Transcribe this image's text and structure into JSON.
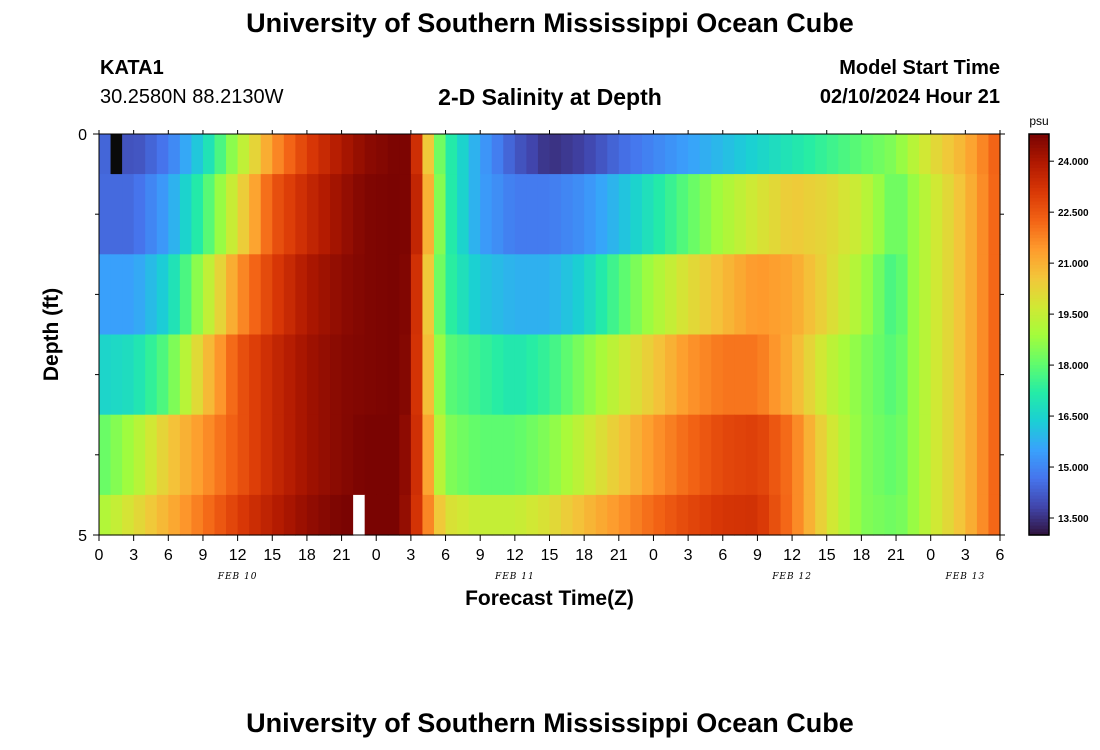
{
  "header": {
    "title": "University of Southern Mississippi Ocean Cube",
    "station": "KATA1",
    "coords": "30.2580N  88.2130W",
    "subtitle": "2-D Salinity at Depth",
    "start_label": "Model Start Time",
    "start_value": "02/10/2024 Hour 21"
  },
  "footer": {
    "title": "University of Southern Mississippi Ocean Cube"
  },
  "colors": {
    "colormap": [
      "#30123b",
      "#4145ab",
      "#4675ed",
      "#39a2fc",
      "#1bcfd4",
      "#24eca6",
      "#61fc6c",
      "#a4fc3b",
      "#d1e834",
      "#f3c63a",
      "#fe9b2d",
      "#f36315",
      "#d93806",
      "#b11901",
      "#7a0402"
    ],
    "missing_dark": "#0a0a0a",
    "missing_light": "#ffffff"
  },
  "chart_data": {
    "type": "heatmap",
    "title": "2-D Salinity at Depth",
    "xlabel": "Forecast Time(Z)",
    "ylabel": "Depth (ft)",
    "x_unit": "hours since 02/10/2024 00Z",
    "x_range": [
      0,
      78
    ],
    "x_tick_step_hours": 3,
    "x_tick_labels": [
      "0",
      "3",
      "6",
      "9",
      "12",
      "15",
      "18",
      "21",
      "0",
      "3",
      "6",
      "9",
      "12",
      "15",
      "18",
      "21",
      "0",
      "3",
      "6",
      "9",
      "12",
      "15",
      "18",
      "21",
      "0",
      "3",
      "6"
    ],
    "day_labels": [
      {
        "label": "FEB 10",
        "hour": 12
      },
      {
        "label": "FEB 11",
        "hour": 36
      },
      {
        "label": "FEB 12",
        "hour": 60
      },
      {
        "label": "FEB 13",
        "hour": 75
      }
    ],
    "y_range": [
      0,
      5
    ],
    "y_tick_labels": [
      "0",
      "5"
    ],
    "y_minor_ticks": [
      1,
      2,
      3,
      4
    ],
    "depth_bins": [
      [
        0,
        0.5
      ],
      [
        0.5,
        1.5
      ],
      [
        1.5,
        2.5
      ],
      [
        2.5,
        3.5
      ],
      [
        3.5,
        4.5
      ],
      [
        4.5,
        5
      ]
    ],
    "time_step_hours": 1,
    "colorbar": {
      "unit": "psu",
      "min": 13,
      "max": 24.8,
      "ticks": [
        "24.000",
        "22.500",
        "21.000",
        "19.500",
        "18.000",
        "16.500",
        "15.000",
        "13.500"
      ]
    },
    "keyframes": {
      "hours": [
        0,
        3,
        6,
        9,
        12,
        15,
        18,
        21,
        23,
        26,
        27,
        28,
        29,
        30,
        33,
        36,
        39,
        42,
        45,
        48,
        51,
        54,
        57,
        60,
        63,
        66,
        69,
        70,
        72,
        75,
        78
      ],
      "rows": [
        [
          14.5,
          14.0,
          14.8,
          16.5,
          19.0,
          21.5,
          23.0,
          24.0,
          24.5,
          24.8,
          24.7,
          22.0,
          19.0,
          17.5,
          15.5,
          14.2,
          13.5,
          13.8,
          14.5,
          15.0,
          15.5,
          16.0,
          16.5,
          17.0,
          17.5,
          18.0,
          18.5,
          19.0,
          20.0,
          21.0,
          22.5
        ],
        [
          14.5,
          14.5,
          15.5,
          17.5,
          20.0,
          22.5,
          23.5,
          24.3,
          24.7,
          24.8,
          24.7,
          22.5,
          19.5,
          17.5,
          15.5,
          14.8,
          14.8,
          15.2,
          16.0,
          17.0,
          18.0,
          19.0,
          19.8,
          20.5,
          20.2,
          19.5,
          18.0,
          18.5,
          19.5,
          20.8,
          22.5
        ],
        [
          15.5,
          15.5,
          16.5,
          19.0,
          21.5,
          23.0,
          24.0,
          24.5,
          24.7,
          24.8,
          24.6,
          22.0,
          19.0,
          17.5,
          16.2,
          15.8,
          15.8,
          16.5,
          17.8,
          19.0,
          20.0,
          20.8,
          21.5,
          21.2,
          20.2,
          19.0,
          17.5,
          18.5,
          19.5,
          20.8,
          22.5
        ],
        [
          16.5,
          16.8,
          18.0,
          20.5,
          22.5,
          23.5,
          24.2,
          24.6,
          24.7,
          24.8,
          24.5,
          22.0,
          19.5,
          18.0,
          17.5,
          17.0,
          17.5,
          18.5,
          19.5,
          20.5,
          21.5,
          22.0,
          22.0,
          21.0,
          19.5,
          18.5,
          17.8,
          18.5,
          19.5,
          20.8,
          22.5
        ],
        [
          18.0,
          19.0,
          20.5,
          21.5,
          22.5,
          23.5,
          24.2,
          24.6,
          24.8,
          24.8,
          24.2,
          22.5,
          20.0,
          18.5,
          18.0,
          18.0,
          18.5,
          19.5,
          20.5,
          21.5,
          22.2,
          22.8,
          23.0,
          22.0,
          20.0,
          18.5,
          18.0,
          18.5,
          19.5,
          20.8,
          22.5
        ],
        [
          19.0,
          20.0,
          21.0,
          22.0,
          23.0,
          23.8,
          24.4,
          24.8,
          24.8,
          24.8,
          24.0,
          22.5,
          21.0,
          20.0,
          19.5,
          19.5,
          20.0,
          20.8,
          21.5,
          22.2,
          22.8,
          23.2,
          23.3,
          22.0,
          20.0,
          18.5,
          18.2,
          18.5,
          19.5,
          20.8,
          22.5
        ]
      ]
    },
    "missing_cells": [
      {
        "hour": 1,
        "depth_bin": 0,
        "color": "missing_dark"
      },
      {
        "hour": 22,
        "depth_bin": 5,
        "color": "missing_light"
      }
    ]
  }
}
